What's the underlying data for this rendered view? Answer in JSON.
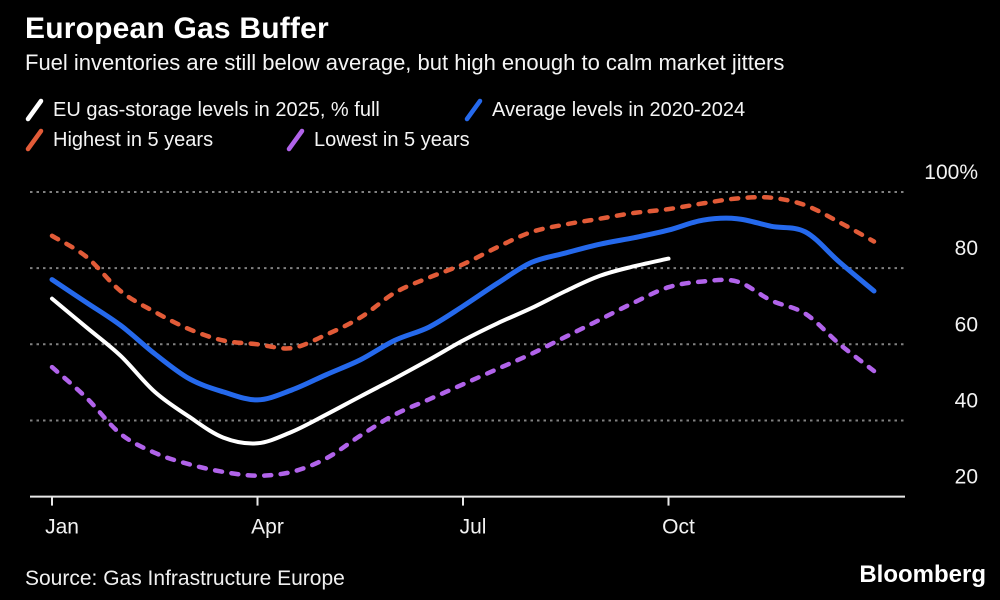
{
  "header": {
    "title": "European Gas Buffer",
    "subtitle": "Fuel inventories are still below average, but high enough to calm market jitters"
  },
  "legend": {
    "items": [
      {
        "label": "EU gas-storage levels in 2025, % full",
        "color": "#ffffff",
        "row": 1
      },
      {
        "label": "Average levels in 2020-2024",
        "color": "#2569ec",
        "row": 1
      },
      {
        "label": "Highest in 5 years",
        "color": "#e25b38",
        "row": 2
      },
      {
        "label": "Lowest in 5 years",
        "color": "#b163ea",
        "row": 2
      }
    ]
  },
  "chart_data": {
    "type": "line",
    "title": "European Gas Buffer",
    "xlabel": "",
    "ylabel": "% full",
    "x_unit": "months since Jan 1",
    "x_axis": {
      "ticks": [
        {
          "label": "Jan",
          "m": 0
        },
        {
          "label": "Apr",
          "m": 3
        },
        {
          "label": "Jul",
          "m": 6
        },
        {
          "label": "Oct",
          "m": 9
        }
      ],
      "range_months": [
        0,
        12.45
      ]
    },
    "y_axis": {
      "ticks": [
        {
          "value": 20,
          "label": "20"
        },
        {
          "value": 40,
          "label": "40"
        },
        {
          "value": 60,
          "label": "60"
        },
        {
          "value": 80,
          "label": "80"
        },
        {
          "value": 100,
          "label": "100%"
        }
      ],
      "gridline_values": [
        40,
        60,
        80,
        100
      ],
      "ylim": [
        20,
        100
      ],
      "grid": "dotted",
      "labels_position": "right"
    },
    "series": [
      {
        "name": "Highest in 5 years",
        "color": "#e25b38",
        "dash": true,
        "width": 4.5,
        "x_start": 0,
        "x_step": 0.5,
        "values": [
          88.5,
          83,
          74,
          68.5,
          64,
          61,
          60,
          59,
          62.5,
          67,
          73.5,
          77.5,
          81,
          85.5,
          89.5,
          91.5,
          93,
          94.5,
          95.5,
          97,
          98.3,
          98.5,
          96.5,
          92,
          87
        ]
      },
      {
        "name": "Lowest in 5 years",
        "color": "#b163ea",
        "dash": true,
        "width": 4.5,
        "x_start": 0,
        "x_step": 0.5,
        "values": [
          54,
          46,
          36.5,
          31.5,
          28.5,
          26.5,
          25.5,
          26.5,
          30,
          36,
          41.5,
          45.5,
          49.5,
          53.5,
          57.5,
          62,
          66.5,
          71,
          75,
          76.5,
          76.5,
          71.5,
          68,
          60,
          53
        ]
      },
      {
        "name": "Average levels in 2020-2024",
        "color": "#2569ec",
        "dash": false,
        "width": 5,
        "x_start": 0,
        "x_step": 0.5,
        "values": [
          77,
          71,
          65,
          57.5,
          51,
          47.5,
          45.4,
          48,
          52,
          55.9,
          61,
          64.5,
          70,
          76,
          81.5,
          84,
          86.3,
          88,
          90,
          92.6,
          93,
          91,
          89.5,
          81.5,
          74
        ]
      },
      {
        "name": "EU gas-storage levels in 2025, % full",
        "color": "#ffffff",
        "dash": false,
        "width": 4,
        "x_start": 0,
        "x_step": 0.5,
        "values": [
          72,
          64.5,
          57,
          47.5,
          41,
          35.5,
          34,
          37,
          41.5,
          46.3,
          51,
          55.9,
          61,
          65.5,
          69.5,
          74,
          78,
          80.5,
          82.5
        ]
      }
    ],
    "legend_position": "top"
  },
  "footer": {
    "source": "Source: Gas Infrastructure Europe",
    "brand": "Bloomberg"
  }
}
